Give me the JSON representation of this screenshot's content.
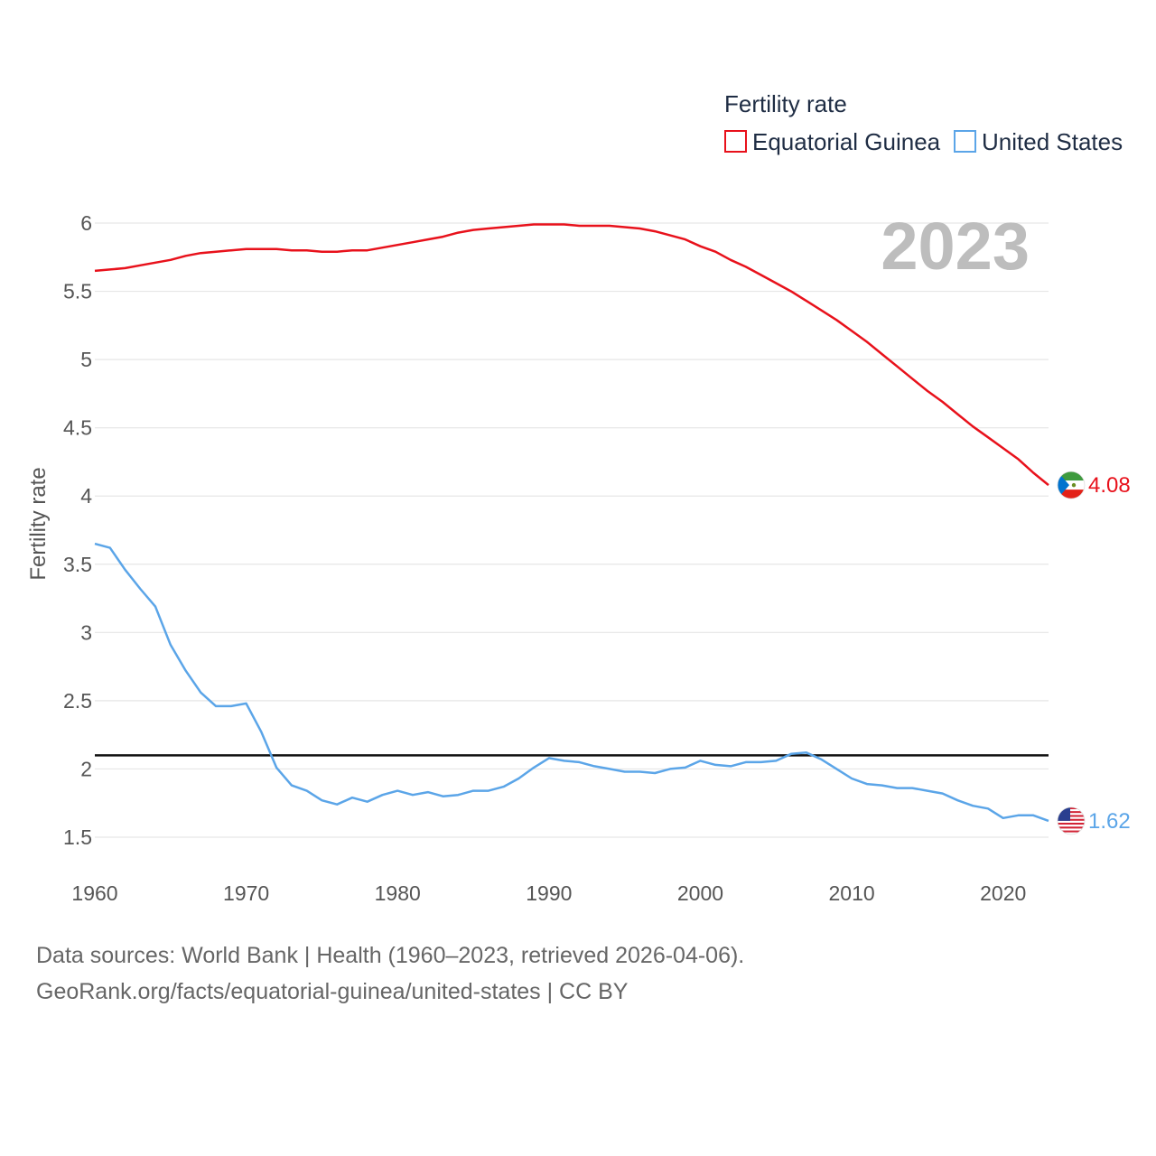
{
  "chart_data": {
    "type": "line",
    "title": "",
    "xlabel": "",
    "ylabel": "Fertility rate",
    "xlim": [
      1960,
      2023
    ],
    "ylim": [
      1.5,
      6
    ],
    "x_ticks": [
      "1960",
      "1970",
      "1980",
      "1990",
      "2000",
      "2010",
      "2020"
    ],
    "y_ticks": [
      "1.5",
      "2",
      "2.5",
      "3",
      "3.5",
      "4",
      "4.5",
      "5",
      "5.5",
      "6"
    ],
    "grid": true,
    "legend_title": "Fertility rate",
    "legend_position": "top-right",
    "year_label": "2023",
    "reference_line": 2.1,
    "x": [
      1960,
      1961,
      1962,
      1963,
      1964,
      1965,
      1966,
      1967,
      1968,
      1969,
      1970,
      1971,
      1972,
      1973,
      1974,
      1975,
      1976,
      1977,
      1978,
      1979,
      1980,
      1981,
      1982,
      1983,
      1984,
      1985,
      1986,
      1987,
      1988,
      1989,
      1990,
      1991,
      1992,
      1993,
      1994,
      1995,
      1996,
      1997,
      1998,
      1999,
      2000,
      2001,
      2002,
      2003,
      2004,
      2005,
      2006,
      2007,
      2008,
      2009,
      2010,
      2011,
      2012,
      2013,
      2014,
      2015,
      2016,
      2017,
      2018,
      2019,
      2020,
      2021,
      2022,
      2023
    ],
    "series": [
      {
        "name": "Equatorial Guinea",
        "color": "#e8111b",
        "end_label": "4.08",
        "flag": "equatorial-guinea-flag",
        "values": [
          5.65,
          5.66,
          5.67,
          5.69,
          5.71,
          5.73,
          5.76,
          5.78,
          5.79,
          5.8,
          5.81,
          5.81,
          5.81,
          5.8,
          5.8,
          5.79,
          5.79,
          5.8,
          5.8,
          5.82,
          5.84,
          5.86,
          5.88,
          5.9,
          5.93,
          5.95,
          5.96,
          5.97,
          5.98,
          5.99,
          5.99,
          5.99,
          5.98,
          5.98,
          5.98,
          5.97,
          5.96,
          5.94,
          5.91,
          5.88,
          5.83,
          5.79,
          5.73,
          5.68,
          5.62,
          5.56,
          5.5,
          5.43,
          5.36,
          5.29,
          5.21,
          5.13,
          5.04,
          4.95,
          4.86,
          4.77,
          4.69,
          4.6,
          4.51,
          4.43,
          4.35,
          4.27,
          4.17,
          4.08
        ]
      },
      {
        "name": "United States",
        "color": "#5ba5e8",
        "end_label": "1.62",
        "flag": "united-states-flag",
        "values": [
          3.65,
          3.62,
          3.46,
          3.32,
          3.19,
          2.91,
          2.72,
          2.56,
          2.46,
          2.46,
          2.48,
          2.27,
          2.01,
          1.88,
          1.84,
          1.77,
          1.74,
          1.79,
          1.76,
          1.81,
          1.84,
          1.81,
          1.83,
          1.8,
          1.81,
          1.84,
          1.84,
          1.87,
          1.93,
          2.01,
          2.08,
          2.06,
          2.05,
          2.02,
          2.0,
          1.98,
          1.98,
          1.97,
          2.0,
          2.01,
          2.06,
          2.03,
          2.02,
          2.05,
          2.05,
          2.06,
          2.11,
          2.12,
          2.07,
          2.0,
          1.93,
          1.89,
          1.88,
          1.86,
          1.86,
          1.84,
          1.82,
          1.77,
          1.73,
          1.71,
          1.64,
          1.66,
          1.66,
          1.62
        ]
      }
    ]
  },
  "footer": {
    "sources": "Data sources: World Bank | Health (1960–2023, retrieved 2026-04-06).",
    "link": "GeoRank.org/facts/equatorial-guinea/united-states | CC BY"
  }
}
